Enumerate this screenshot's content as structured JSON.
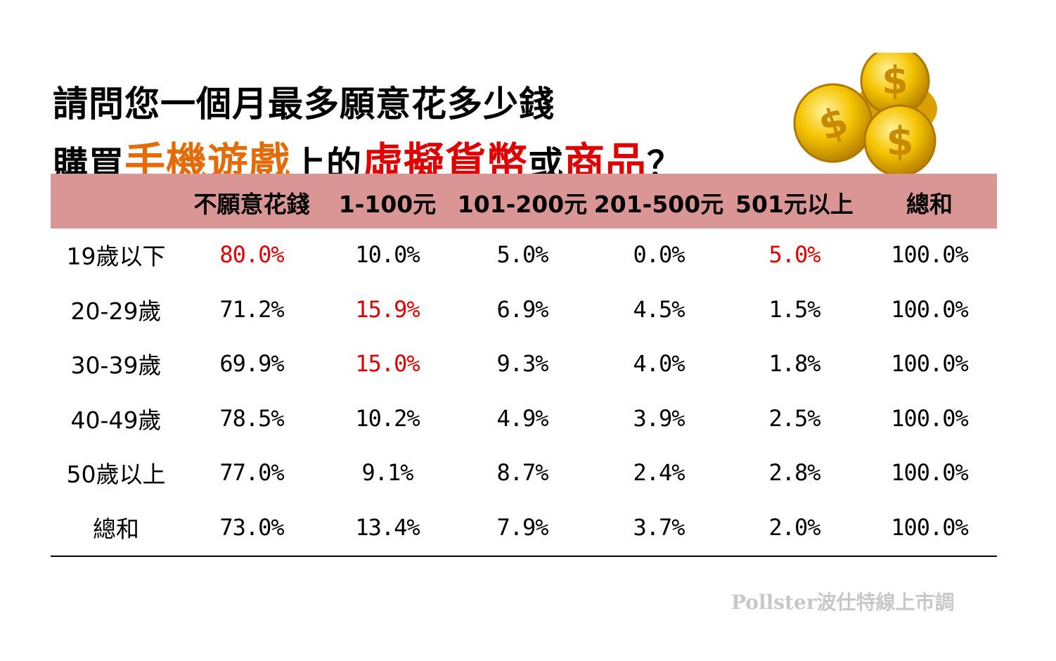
{
  "title": {
    "line1": "請問您一個月最多願意花多少錢",
    "line2": [
      "購買",
      "手機遊戲",
      "上的",
      "虛擬貨幣",
      "或",
      "商品",
      "？"
    ]
  },
  "table": {
    "columns": [
      "不願意花錢",
      "1-100元",
      "101-200元",
      "201-500元",
      "501元以上",
      "總和"
    ],
    "rows": [
      {
        "label": "19歲以下",
        "cells": [
          "80.0%",
          "10.0%",
          "5.0%",
          "0.0%",
          "5.0%",
          "100.0%"
        ]
      },
      {
        "label": "20-29歲",
        "cells": [
          "71.2%",
          "15.9%",
          "6.9%",
          "4.5%",
          "1.5%",
          "100.0%"
        ]
      },
      {
        "label": "30-39歲",
        "cells": [
          "69.9%",
          "15.0%",
          "9.3%",
          "4.0%",
          "1.8%",
          "100.0%"
        ]
      },
      {
        "label": "40-49歲",
        "cells": [
          "78.5%",
          "10.2%",
          "4.9%",
          "3.9%",
          "2.5%",
          "100.0%"
        ]
      },
      {
        "label": "50歲以上",
        "cells": [
          "77.0%",
          "9.1%",
          "8.7%",
          "2.4%",
          "2.8%",
          "100.0%"
        ]
      },
      {
        "label": "總和",
        "cells": [
          "73.0%",
          "13.4%",
          "7.9%",
          "3.7%",
          "2.0%",
          "100.0%"
        ]
      }
    ],
    "highlighted": [
      [
        0,
        0
      ],
      [
        0,
        4
      ],
      [
        1,
        1
      ],
      [
        2,
        1
      ]
    ]
  },
  "footer": {
    "source": "Pollster波仕特線上市調"
  }
}
